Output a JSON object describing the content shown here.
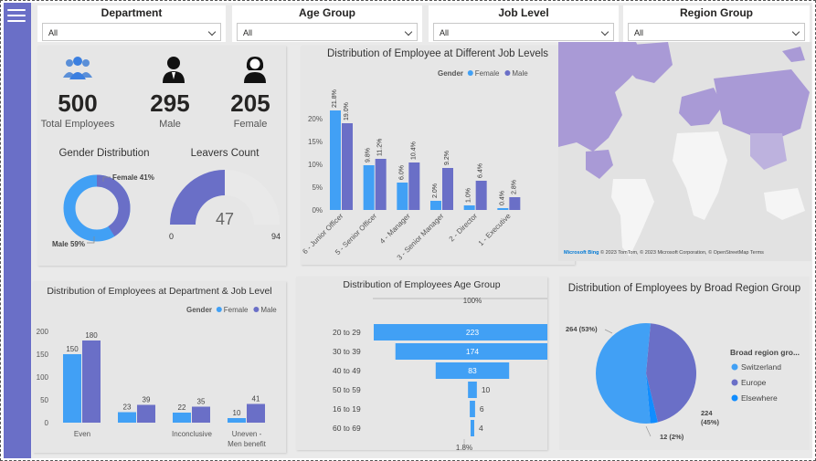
{
  "slicers": [
    {
      "title": "Department",
      "value": "All"
    },
    {
      "title": "Age Group",
      "value": "All"
    },
    {
      "title": "Job Level",
      "value": "All"
    },
    {
      "title": "Region Group",
      "value": "All"
    }
  ],
  "kpis": {
    "total": {
      "value": "500",
      "label": "Total Employees"
    },
    "male": {
      "value": "295",
      "label": "Male"
    },
    "female": {
      "value": "205",
      "label": "Female"
    }
  },
  "gender_dist": {
    "title": "Gender Distribution",
    "female_label": "Female 41%",
    "male_label": "Male 59%"
  },
  "leavers": {
    "title": "Leavers Count",
    "value": "47",
    "min": "0",
    "max": "94"
  },
  "job_levels_chart": {
    "title": "Distribution of Employee at Different Job Levels",
    "legend_title": "Gender",
    "legend_female": "Female",
    "legend_male": "Male"
  },
  "dept_chart": {
    "title": "Distribution of Employees at Department & Job Level",
    "legend_title": "Gender",
    "legend_female": "Female",
    "legend_male": "Male"
  },
  "age_chart": {
    "title": "Distribution of Employees Age Group",
    "top_label": "100%",
    "bottom_label": "1.8%"
  },
  "region_chart": {
    "title": "Distribution of Employees by Broad Region Group",
    "legend_title": "Broad region gro...",
    "labels": [
      "264 (53%)",
      "224",
      "(45%)",
      "12 (2%)"
    ]
  },
  "map": {
    "attribution": "© 2023 TomTom, © 2023 Microsoft Corporation, © OpenStreetMap Terms",
    "logo": "Microsoft Bing"
  },
  "colors": {
    "female": "#41a0f5",
    "male": "#6a6fc7",
    "accent": "#118dff",
    "gauge_bg": "#e9e9e9"
  },
  "chart_data": [
    {
      "type": "bar",
      "title": "Distribution of Employee at Different Job Levels",
      "categories": [
        "6 - Junior Officer",
        "5 - Senior Officer",
        "4 - Manager",
        "3 - Senior Manager",
        "2 - Director",
        "1 - Executive"
      ],
      "series": [
        {
          "name": "Female",
          "values": [
            21.8,
            9.8,
            6.0,
            2.0,
            1.0,
            0.4
          ],
          "labels": [
            "21.8%",
            "9.8%",
            "6.0%",
            "2.0%",
            "1.0%",
            "0.4%"
          ]
        },
        {
          "name": "Male",
          "values": [
            19.0,
            11.2,
            10.4,
            9.2,
            6.4,
            2.8
          ],
          "labels": [
            "19.0%",
            "11.2%",
            "10.4%",
            "9.2%",
            "6.4%",
            "2.8%"
          ]
        }
      ],
      "yticks": [
        "0%",
        "5%",
        "10%",
        "15%",
        "20%"
      ],
      "ylim": [
        0,
        22
      ]
    },
    {
      "type": "bar",
      "title": "Distribution of Employees at Department & Job Level",
      "categories": [
        "Even",
        "",
        "Inconclusive",
        "Uneven - Men benefit"
      ],
      "series": [
        {
          "name": "Female",
          "values": [
            150,
            23,
            22,
            10
          ]
        },
        {
          "name": "Male",
          "values": [
            180,
            39,
            35,
            41
          ]
        }
      ],
      "yticks": [
        "0",
        "50",
        "100",
        "150",
        "200"
      ],
      "ylim": [
        0,
        200
      ]
    },
    {
      "type": "bar",
      "title": "Distribution of Employees Age Group",
      "categories": [
        "20 to 29",
        "30 to 39",
        "40 to 49",
        "50 to 59",
        "16 to 19",
        "60 to 69"
      ],
      "values": [
        223,
        174,
        83,
        10,
        6,
        4
      ]
    },
    {
      "type": "pie",
      "title": "Distribution of Employees by Broad Region Group",
      "categories": [
        "Switzerland",
        "Europe",
        "Elsewhere"
      ],
      "values": [
        264,
        224,
        12
      ],
      "colors": [
        "#41a0f5",
        "#6a6fc7",
        "#118dff"
      ]
    },
    {
      "type": "pie",
      "title": "Gender Distribution",
      "categories": [
        "Female",
        "Male"
      ],
      "values": [
        41,
        59
      ]
    }
  ]
}
